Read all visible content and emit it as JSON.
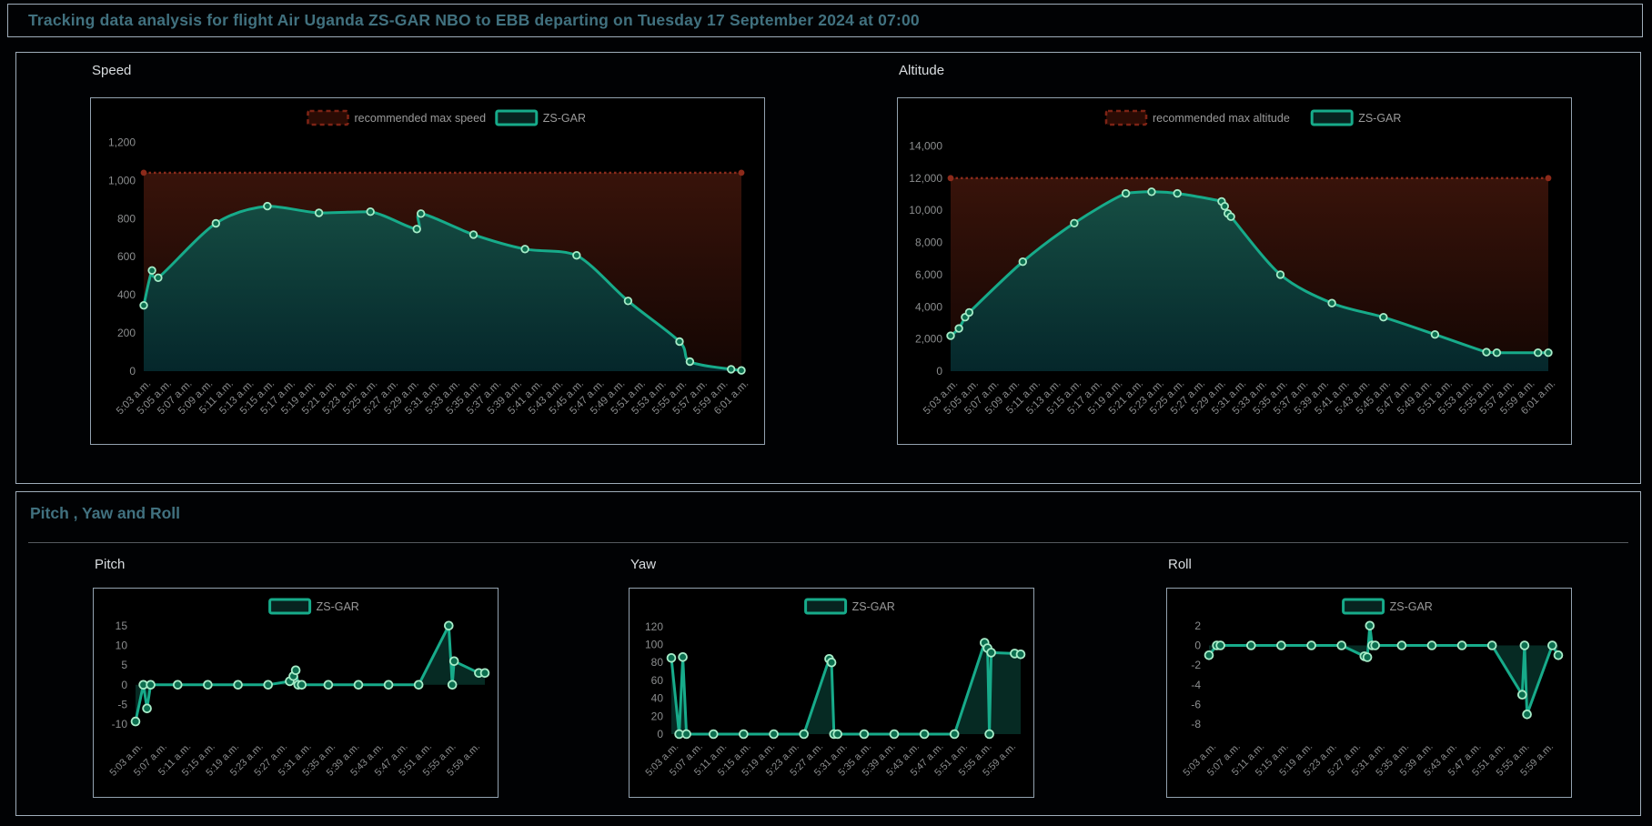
{
  "header": {
    "title": "Tracking data analysis for flight Air Uganda ZS-GAR NBO to EBB departing on Tuesday 17 September 2024 at 07:00"
  },
  "sections": {
    "pyr": {
      "title": "Pitch , Yaw and Roll"
    }
  },
  "legend_labels": {
    "series": "ZS-GAR",
    "max_speed": "recommended max speed",
    "max_altitude": "recommended max altitude"
  },
  "colors": {
    "background": "#010204",
    "panel_border": "#9fadba",
    "title_text": "#41717f",
    "chart_title_text": "#d9dde0",
    "axis_label": "#8b8d8e",
    "series_line": "#17ab8a",
    "marker_fill": "#0c6e4f",
    "marker_ring": "#a7ecc8",
    "max_line": "#8c2a1a",
    "legend_text": "#9a9a9a",
    "area_top": "#1b5a4b",
    "area_bottom": "#05272b",
    "band_top": "#38130a",
    "band_bottom": "#140603",
    "small_area_fill": "rgba(23,166,140,0.25)",
    "divider": "#54595e"
  },
  "chart_data": [
    {
      "id": "speed",
      "title": "Speed",
      "type": "line",
      "size": "large",
      "smooth": true,
      "grid": false,
      "legend_position": "top",
      "series": [
        {
          "name": "ZS-GAR",
          "points": [
            [
              3,
              345
            ],
            [
              3.8,
              528
            ],
            [
              4.4,
              490
            ],
            [
              10,
              775
            ],
            [
              15,
              865
            ],
            [
              20,
              830
            ],
            [
              25,
              836
            ],
            [
              29.5,
              745
            ],
            [
              29.9,
              826
            ],
            [
              35,
              716
            ],
            [
              40,
              640
            ],
            [
              45,
              607
            ],
            [
              50,
              368
            ],
            [
              55,
              155
            ],
            [
              56,
              50
            ],
            [
              60,
              10
            ],
            [
              61,
              4
            ]
          ]
        }
      ],
      "max_line": {
        "label": "recommended max speed",
        "value": 1040
      },
      "xlim": [
        3,
        61
      ],
      "ylim": [
        0,
        1240
      ],
      "x_ticks": {
        "values": [
          3,
          5,
          7,
          9,
          11,
          13,
          15,
          17,
          19,
          21,
          23,
          25,
          27,
          29,
          31,
          33,
          35,
          37,
          39,
          41,
          43,
          45,
          47,
          49,
          51,
          53,
          55,
          57,
          59,
          61
        ],
        "labels": [
          "5:03 a.m.",
          "5:05 a.m.",
          "5:07 a.m.",
          "5:09 a.m.",
          "5:11 a.m.",
          "5:13 a.m.",
          "5:15 a.m.",
          "5:17 a.m.",
          "5:19 a.m.",
          "5:21 a.m.",
          "5:23 a.m.",
          "5:25 a.m.",
          "5:27 a.m.",
          "5:29 a.m.",
          "5:31 a.m.",
          "5:33 a.m.",
          "5:35 a.m.",
          "5:37 a.m.",
          "5:39 a.m.",
          "5:41 a.m.",
          "5:43 a.m.",
          "5:45 a.m.",
          "5:47 a.m.",
          "5:49 a.m.",
          "5:51 a.m.",
          "5:53 a.m.",
          "5:55 a.m.",
          "5:57 a.m.",
          "5:59 a.m.",
          "6:01 a.m."
        ]
      },
      "y_ticks": {
        "values": [
          0,
          200,
          400,
          600,
          800,
          1000,
          1200
        ],
        "labels": [
          "0",
          "200",
          "400",
          "600",
          "800",
          "1,000",
          "1,200"
        ]
      }
    },
    {
      "id": "altitude",
      "title": "Altitude",
      "type": "line",
      "size": "large",
      "smooth": true,
      "grid": false,
      "legend_position": "top",
      "series": [
        {
          "name": "ZS-GAR",
          "points": [
            [
              3,
              2200
            ],
            [
              3.8,
              2650
            ],
            [
              4.4,
              3350
            ],
            [
              4.8,
              3650
            ],
            [
              10,
              6800
            ],
            [
              15,
              9200
            ],
            [
              20,
              11050
            ],
            [
              22.5,
              11150
            ],
            [
              25,
              11050
            ],
            [
              29.3,
              10550
            ],
            [
              29.6,
              10250
            ],
            [
              29.9,
              9800
            ],
            [
              30.2,
              9600
            ],
            [
              35,
              6000
            ],
            [
              40,
              4230
            ],
            [
              45,
              3350
            ],
            [
              50,
              2280
            ],
            [
              55,
              1180
            ],
            [
              56,
              1150
            ],
            [
              60,
              1150
            ],
            [
              61,
              1150
            ]
          ]
        }
      ],
      "max_line": {
        "label": "recommended max altitude",
        "value": 12000
      },
      "xlim": [
        3,
        61
      ],
      "ylim": [
        0,
        14700
      ],
      "x_ticks": {
        "values": [
          3,
          5,
          7,
          9,
          11,
          13,
          15,
          17,
          19,
          21,
          23,
          25,
          27,
          29,
          31,
          33,
          35,
          37,
          39,
          41,
          43,
          45,
          47,
          49,
          51,
          53,
          55,
          57,
          59,
          61
        ],
        "labels": [
          "5:03 a.m.",
          "5:05 a.m.",
          "5:07 a.m.",
          "5:09 a.m.",
          "5:11 a.m.",
          "5:13 a.m.",
          "5:15 a.m.",
          "5:17 a.m.",
          "5:19 a.m.",
          "5:21 a.m.",
          "5:23 a.m.",
          "5:25 a.m.",
          "5:27 a.m.",
          "5:29 a.m.",
          "5:31 a.m.",
          "5:33 a.m.",
          "5:35 a.m.",
          "5:37 a.m.",
          "5:39 a.m.",
          "5:41 a.m.",
          "5:43 a.m.",
          "5:45 a.m.",
          "5:47 a.m.",
          "5:49 a.m.",
          "5:51 a.m.",
          "5:53 a.m.",
          "5:55 a.m.",
          "5:57 a.m.",
          "5:59 a.m.",
          "6:01 a.m."
        ]
      },
      "y_ticks": {
        "values": [
          0,
          2000,
          4000,
          6000,
          8000,
          10000,
          12000,
          14000
        ],
        "labels": [
          "0",
          "2,000",
          "4,000",
          "6,000",
          "8,000",
          "10,000",
          "12,000",
          "14,000"
        ]
      }
    },
    {
      "id": "pitch",
      "title": "Pitch",
      "type": "line",
      "size": "small",
      "smooth": false,
      "grid": false,
      "legend_position": "top",
      "series": [
        {
          "name": "ZS-GAR",
          "points": [
            [
              3,
              -9.3
            ],
            [
              4.3,
              0
            ],
            [
              4.9,
              -6
            ],
            [
              5.5,
              0
            ],
            [
              10,
              0
            ],
            [
              15,
              0
            ],
            [
              20,
              0
            ],
            [
              25,
              0
            ],
            [
              28.6,
              0.9
            ],
            [
              29.2,
              2.2
            ],
            [
              29.6,
              3.7
            ],
            [
              30,
              0
            ],
            [
              30.6,
              0
            ],
            [
              35,
              0
            ],
            [
              40,
              0
            ],
            [
              45,
              0
            ],
            [
              50,
              0
            ],
            [
              55,
              15
            ],
            [
              55.6,
              0
            ],
            [
              55.9,
              6
            ],
            [
              60,
              3
            ],
            [
              61,
              3
            ]
          ]
        }
      ],
      "xlim": [
        3,
        61
      ],
      "ylim": [
        -12.5,
        17.5
      ],
      "x_ticks": {
        "values": [
          3,
          7,
          11,
          15,
          19,
          23,
          27,
          31,
          35,
          39,
          43,
          47,
          51,
          55,
          59
        ],
        "labels": [
          "5:03 a.m.",
          "5:07 a.m.",
          "5:11 a.m.",
          "5:15 a.m.",
          "5:19 a.m.",
          "5:23 a.m.",
          "5:27 a.m.",
          "5:31 a.m.",
          "5:35 a.m.",
          "5:39 a.m.",
          "5:43 a.m.",
          "5:47 a.m.",
          "5:51 a.m.",
          "5:55 a.m.",
          "5:59 a.m."
        ]
      },
      "y_ticks": {
        "values": [
          -10,
          -5,
          0,
          5,
          10,
          15
        ],
        "labels": [
          "-10",
          "-5",
          "0",
          "5",
          "10",
          "15"
        ]
      }
    },
    {
      "id": "yaw",
      "title": "Yaw",
      "type": "line",
      "size": "small",
      "smooth": false,
      "grid": false,
      "legend_position": "top",
      "series": [
        {
          "name": "ZS-GAR",
          "points": [
            [
              3,
              85
            ],
            [
              4.3,
              0
            ],
            [
              4.9,
              86
            ],
            [
              5.5,
              0
            ],
            [
              10,
              0
            ],
            [
              15,
              0
            ],
            [
              20,
              0
            ],
            [
              25,
              0
            ],
            [
              29.2,
              84
            ],
            [
              29.6,
              80
            ],
            [
              30,
              0
            ],
            [
              30.6,
              0
            ],
            [
              35,
              0
            ],
            [
              40,
              0
            ],
            [
              45,
              0
            ],
            [
              50,
              0
            ],
            [
              55,
              102
            ],
            [
              55.5,
              96
            ],
            [
              55.8,
              0
            ],
            [
              56.1,
              91
            ],
            [
              60,
              90
            ],
            [
              61,
              89
            ]
          ]
        }
      ],
      "xlim": [
        3,
        61
      ],
      "ylim": [
        0,
        132
      ],
      "x_ticks": {
        "values": [
          3,
          7,
          11,
          15,
          19,
          23,
          27,
          31,
          35,
          39,
          43,
          47,
          51,
          55,
          59
        ],
        "labels": [
          "5:03 a.m.",
          "5:07 a.m.",
          "5:11 a.m.",
          "5:15 a.m.",
          "5:19 a.m.",
          "5:23 a.m.",
          "5:27 a.m.",
          "5:31 a.m.",
          "5:35 a.m.",
          "5:39 a.m.",
          "5:43 a.m.",
          "5:47 a.m.",
          "5:51 a.m.",
          "5:55 a.m.",
          "5:59 a.m."
        ]
      },
      "y_ticks": {
        "values": [
          0,
          20,
          40,
          60,
          80,
          100,
          120
        ],
        "labels": [
          "0",
          "20",
          "40",
          "60",
          "80",
          "100",
          "120"
        ]
      }
    },
    {
      "id": "roll",
      "title": "Roll",
      "type": "line",
      "size": "small",
      "smooth": false,
      "grid": false,
      "legend_position": "top",
      "series": [
        {
          "name": "ZS-GAR",
          "points": [
            [
              3,
              -1
            ],
            [
              4.3,
              0
            ],
            [
              4.9,
              0
            ],
            [
              10,
              0
            ],
            [
              15,
              0
            ],
            [
              20,
              0
            ],
            [
              25,
              0
            ],
            [
              28.8,
              -1.1
            ],
            [
              29.3,
              -1.2
            ],
            [
              29.7,
              2
            ],
            [
              30.1,
              0
            ],
            [
              30.6,
              0
            ],
            [
              35,
              0
            ],
            [
              40,
              0
            ],
            [
              45,
              0
            ],
            [
              50,
              0
            ],
            [
              55,
              -5
            ],
            [
              55.4,
              0
            ],
            [
              55.8,
              -7
            ],
            [
              60,
              0
            ],
            [
              61,
              -1
            ]
          ]
        }
      ],
      "xlim": [
        3,
        61
      ],
      "ylim": [
        -9,
        3
      ],
      "x_ticks": {
        "values": [
          3,
          7,
          11,
          15,
          19,
          23,
          27,
          31,
          35,
          39,
          43,
          47,
          51,
          55,
          59
        ],
        "labels": [
          "5:03 a.m.",
          "5:07 a.m.",
          "5:11 a.m.",
          "5:15 a.m.",
          "5:19 a.m.",
          "5:23 a.m.",
          "5:27 a.m.",
          "5:31 a.m.",
          "5:35 a.m.",
          "5:39 a.m.",
          "5:43 a.m.",
          "5:47 a.m.",
          "5:51 a.m.",
          "5:55 a.m.",
          "5:59 a.m."
        ]
      },
      "y_ticks": {
        "values": [
          -8,
          -6,
          -4,
          -2,
          0,
          2
        ],
        "labels": [
          "-8",
          "-6",
          "-4",
          "-2",
          "0",
          "2"
        ]
      }
    }
  ]
}
